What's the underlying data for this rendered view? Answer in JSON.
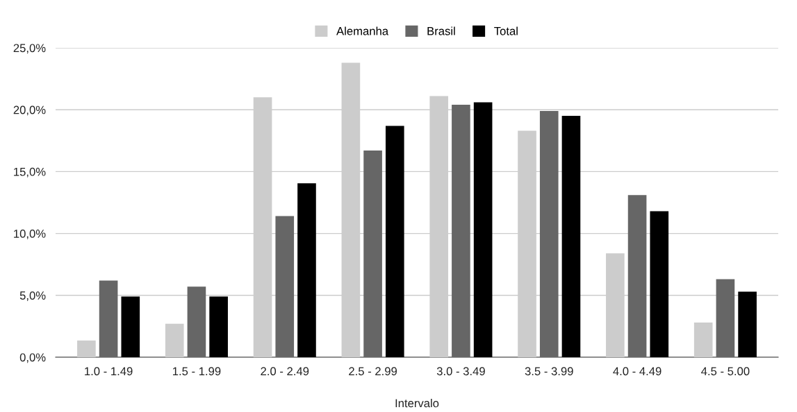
{
  "chart_data": {
    "type": "bar",
    "xlabel": "Intervalo",
    "categories": [
      "1.0 - 1.49",
      "1.5 - 1.99",
      "2.0 - 2.49",
      "2.5 - 2.99",
      "3.0 - 3.49",
      "3.5 - 3.99",
      "4.0 - 4.49",
      "4.5 - 5.00"
    ],
    "series": [
      {
        "name": "Alemanha",
        "color": "#cccccc",
        "values": [
          1.35,
          2.7,
          21.0,
          23.8,
          21.1,
          18.3,
          8.4,
          2.8
        ]
      },
      {
        "name": "Brasil",
        "color": "#666666",
        "values": [
          6.2,
          5.7,
          11.4,
          16.7,
          20.4,
          19.9,
          13.1,
          6.3
        ]
      },
      {
        "name": "Total",
        "color": "#000000",
        "values": [
          4.9,
          4.9,
          14.05,
          18.7,
          20.6,
          19.5,
          11.8,
          5.3
        ]
      }
    ],
    "ylim": [
      0,
      25
    ],
    "yticks": [
      {
        "value": 0,
        "label": "0,0%"
      },
      {
        "value": 5,
        "label": "5,0%"
      },
      {
        "value": 10,
        "label": "10,0%"
      },
      {
        "value": 15,
        "label": "15,0%"
      },
      {
        "value": 20,
        "label": "20,0%"
      },
      {
        "value": 25,
        "label": "25,0%"
      }
    ],
    "grid": "y",
    "legend": "top"
  }
}
